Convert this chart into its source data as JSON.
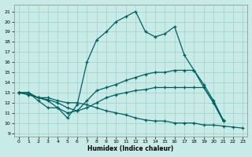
{
  "xlabel": "Humidex (Indice chaleur)",
  "bg_color": "#c8ebe8",
  "grid_color": "#a0d0cc",
  "line_color": "#006060",
  "xlim": [
    -0.5,
    23.5
  ],
  "ylim": [
    8.7,
    21.7
  ],
  "yticks": [
    9,
    10,
    11,
    12,
    13,
    14,
    15,
    16,
    17,
    18,
    19,
    20,
    21
  ],
  "xticks": [
    0,
    1,
    2,
    3,
    4,
    5,
    6,
    7,
    8,
    9,
    10,
    11,
    12,
    13,
    14,
    15,
    16,
    17,
    18,
    19,
    20,
    21,
    22,
    23
  ],
  "series": [
    {
      "x": [
        0,
        1,
        2,
        3,
        4,
        5,
        6,
        7,
        8,
        9,
        10,
        11,
        12,
        13,
        14,
        15,
        16,
        17,
        18,
        19,
        20,
        21
      ],
      "y": [
        13,
        13,
        12.2,
        11.5,
        11.5,
        10.5,
        11.8,
        16,
        18.2,
        19,
        20,
        20.5,
        21,
        19,
        18.5,
        18.8,
        19.5,
        16.7,
        15.2,
        13.5,
        12,
        10.2
      ]
    },
    {
      "x": [
        0,
        1,
        2,
        3,
        4,
        5,
        6,
        7,
        8,
        9,
        10,
        11,
        12,
        13,
        14,
        15,
        16,
        17,
        18,
        19,
        20,
        21
      ],
      "y": [
        13,
        12.8,
        12.5,
        12.2,
        11.5,
        11.0,
        11.2,
        12.2,
        13.2,
        13.5,
        13.8,
        14.2,
        14.5,
        14.8,
        15.0,
        15.0,
        15.2,
        15.2,
        15.2,
        13.8,
        12.2,
        10.3
      ]
    },
    {
      "x": [
        0,
        1,
        2,
        3,
        4,
        5,
        6,
        7,
        8,
        9,
        10,
        11,
        12,
        13,
        14,
        15,
        16,
        17,
        18,
        19,
        20,
        21
      ],
      "y": [
        13,
        12.8,
        12.5,
        12.3,
        12.0,
        11.5,
        11.2,
        11.5,
        12.0,
        12.5,
        12.8,
        13.0,
        13.2,
        13.3,
        13.5,
        13.5,
        13.5,
        13.5,
        13.5,
        13.5,
        12.0,
        10.2
      ]
    },
    {
      "x": [
        0,
        1,
        2,
        3,
        4,
        5,
        6,
        7,
        8,
        9,
        10,
        11,
        12,
        13,
        14,
        15,
        16,
        17,
        18,
        19,
        20,
        21,
        22,
        23
      ],
      "y": [
        13,
        13,
        12.5,
        12.5,
        12.2,
        12.0,
        12.0,
        11.8,
        11.5,
        11.2,
        11.0,
        10.8,
        10.5,
        10.3,
        10.2,
        10.2,
        10.0,
        10.0,
        10.0,
        9.8,
        9.8,
        9.7,
        9.6,
        9.5
      ]
    }
  ]
}
